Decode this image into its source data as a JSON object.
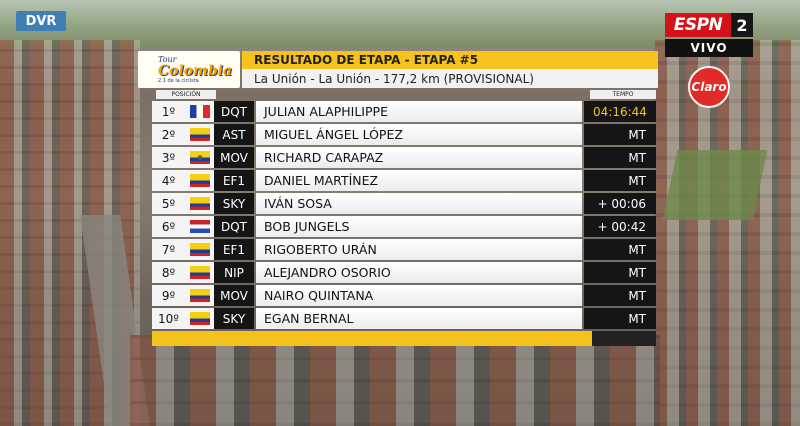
{
  "overlay": {
    "dvr_label": "DVR",
    "network_logo": "ESPN",
    "channel_number": "2",
    "live_label": "VIVO",
    "sponsor_logo": "Claro"
  },
  "race_logo": {
    "line1": "Tour",
    "line2": "Colombia",
    "line3": "2.1 de la ciclista"
  },
  "header": {
    "title": "RESULTADO DE ETAPA - ETAPA #5",
    "subtitle": "La Unión - La Unión - 177,2 km (PROVISIONAL)"
  },
  "columns": {
    "position": "POSICIÓN",
    "time": "TEMPO"
  },
  "results": [
    {
      "rank": "1º",
      "flag": "fr",
      "team": "DQT",
      "name": "JULIAN ALAPHILIPPE",
      "time": "04:16:44"
    },
    {
      "rank": "2º",
      "flag": "co",
      "team": "AST",
      "name": "MIGUEL ÁNGEL LÓPEZ",
      "time": "MT"
    },
    {
      "rank": "3º",
      "flag": "ec",
      "team": "MOV",
      "name": "RICHARD CARAPAZ",
      "time": "MT"
    },
    {
      "rank": "4º",
      "flag": "co",
      "team": "EF1",
      "name": "DANIEL MARTÍNEZ",
      "time": "MT"
    },
    {
      "rank": "5º",
      "flag": "co",
      "team": "SKY",
      "name": "IVÁN SOSA",
      "time": "+ 00:06"
    },
    {
      "rank": "6º",
      "flag": "nl",
      "team": "DQT",
      "name": "BOB JUNGELS",
      "time": "+ 00:42"
    },
    {
      "rank": "7º",
      "flag": "co",
      "team": "EF1",
      "name": "RIGOBERTO URÁN",
      "time": "MT"
    },
    {
      "rank": "8º",
      "flag": "co",
      "team": "NIP",
      "name": "ALEJANDRO OSORIO",
      "time": "MT"
    },
    {
      "rank": "9º",
      "flag": "co",
      "team": "MOV",
      "name": "NAIRO QUINTANA",
      "time": "MT"
    },
    {
      "rank": "10º",
      "flag": "co",
      "team": "SKY",
      "name": "EGAN BERNAL",
      "time": "MT"
    }
  ],
  "colors": {
    "accent_gold": "#f7c21c",
    "leader_time": "#f5c21c",
    "cell_dark": "#151515",
    "espn_red": "#d4121c",
    "dvr_blue": "#3f7fb6"
  }
}
